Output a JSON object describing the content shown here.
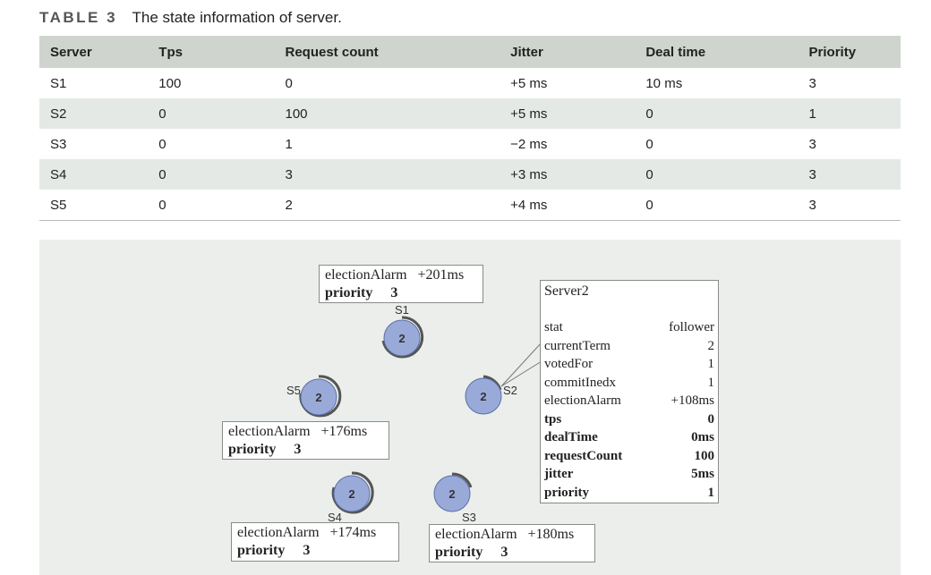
{
  "caption": {
    "label": "TABLE 3",
    "text": "The state information of server."
  },
  "table": {
    "headers": [
      "Server",
      "Tps",
      "Request count",
      "Jitter",
      "Deal time",
      "Priority"
    ],
    "rows": [
      [
        "S1",
        "100",
        "0",
        "+5 ms",
        "10 ms",
        "3"
      ],
      [
        "S2",
        "0",
        "100",
        "+5 ms",
        "0",
        "1"
      ],
      [
        "S3",
        "0",
        "1",
        "−2 ms",
        "0",
        "3"
      ],
      [
        "S4",
        "0",
        "3",
        "+3 ms",
        "0",
        "3"
      ],
      [
        "S5",
        "0",
        "2",
        "+4 ms",
        "0",
        "3"
      ]
    ]
  },
  "figure": {
    "nodes": [
      {
        "name": "S1",
        "term": "2",
        "electionAlarmLabel": "electionAlarm",
        "electionAlarm": "+201ms",
        "priorityLabel": "priority",
        "priority": "3"
      },
      {
        "name": "S2",
        "term": "2"
      },
      {
        "name": "S3",
        "term": "2",
        "electionAlarmLabel": "electionAlarm",
        "electionAlarm": "+180ms",
        "priorityLabel": "priority",
        "priority": "3"
      },
      {
        "name": "S4",
        "term": "2",
        "electionAlarmLabel": "electionAlarm",
        "electionAlarm": "+174ms",
        "priorityLabel": "priority",
        "priority": "3"
      },
      {
        "name": "S5",
        "term": "2",
        "electionAlarmLabel": "electionAlarm",
        "electionAlarm": "+176ms",
        "priorityLabel": "priority",
        "priority": "3"
      }
    ],
    "server2_panel": {
      "title": "Server2",
      "rows": [
        {
          "key": "stat",
          "value": "follower"
        },
        {
          "key": "currentTerm",
          "value": "2"
        },
        {
          "key": "votedFor",
          "value": "1"
        },
        {
          "key": "commitInedx",
          "value": "1"
        },
        {
          "key": "electionAlarm",
          "value": "+108ms"
        },
        {
          "key": "tps",
          "value": "0"
        },
        {
          "key": "dealTime",
          "value": "0ms"
        },
        {
          "key": "requestCount",
          "value": "100"
        },
        {
          "key": "jitter",
          "value": "5ms"
        },
        {
          "key": "priority",
          "value": "1"
        }
      ]
    },
    "colors": {
      "node_fill": "#9aaad8",
      "node_stroke": "#5b6fa8",
      "arc": "#555555",
      "background": "#ebeeeb"
    }
  }
}
